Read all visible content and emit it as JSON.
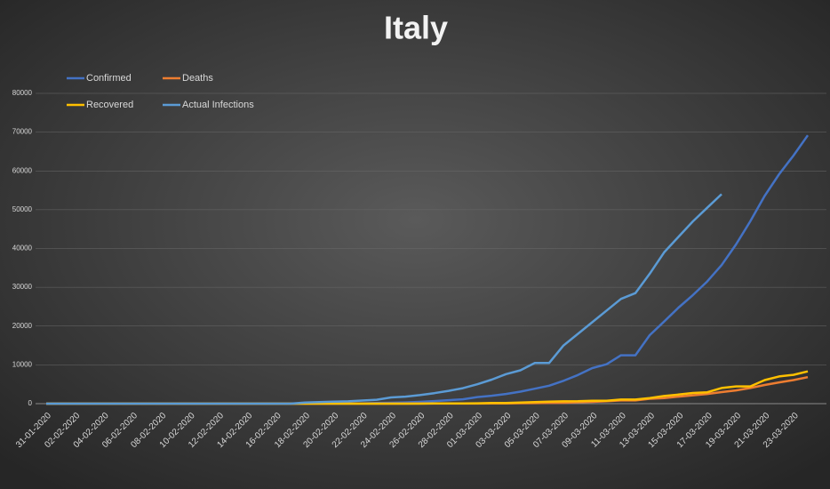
{
  "chart_data": {
    "type": "line",
    "title": "Italy",
    "categories": [
      "31-01-2020",
      null,
      "02-02-2020",
      null,
      "04-02-2020",
      null,
      "06-02-2020",
      null,
      "08-02-2020",
      null,
      "10-02-2020",
      null,
      "12-02-2020",
      null,
      "14-02-2020",
      null,
      "16-02-2020",
      null,
      "18-02-2020",
      null,
      "20-02-2020",
      null,
      "22-02-2020",
      null,
      "24-02-2020",
      null,
      "26-02-2020",
      null,
      "28-02-2020",
      null,
      "01-03-2020",
      null,
      "03-03-2020",
      null,
      "05-03-2020",
      null,
      "07-03-2020",
      null,
      "09-03-2020",
      null,
      "11-03-2020",
      null,
      "13-03-2020",
      null,
      "15-03-2020",
      null,
      "17-03-2020",
      null,
      "19-03-2020",
      null,
      "21-03-2020",
      null,
      "23-03-2020",
      null
    ],
    "series": [
      {
        "name": "Confirmed",
        "color": "#4472c4",
        "values": [
          2,
          2,
          2,
          2,
          2,
          2,
          3,
          3,
          3,
          3,
          3,
          3,
          3,
          3,
          3,
          3,
          3,
          3,
          3,
          3,
          3,
          20,
          79,
          150,
          229,
          322,
          453,
          655,
          888,
          1128,
          1694,
          2036,
          2502,
          3089,
          3858,
          4636,
          5883,
          7375,
          9172,
          10149,
          12462,
          12462,
          17660,
          21157,
          24747,
          27980,
          31506,
          35713,
          41035,
          47021,
          53578,
          59138,
          63927,
          69176
        ]
      },
      {
        "name": "Deaths",
        "color": "#ed7d31",
        "values": [
          0,
          0,
          0,
          0,
          0,
          0,
          0,
          0,
          0,
          0,
          0,
          0,
          0,
          0,
          0,
          0,
          0,
          0,
          0,
          0,
          0,
          1,
          2,
          3,
          7,
          10,
          12,
          17,
          21,
          29,
          34,
          52,
          79,
          107,
          148,
          197,
          233,
          366,
          463,
          631,
          827,
          827,
          1266,
          1441,
          1809,
          2158,
          2503,
          2978,
          3405,
          4032,
          4825,
          5476,
          6077,
          6820
        ]
      },
      {
        "name": "Recovered",
        "color": "#ffc000",
        "values": [
          0,
          0,
          0,
          0,
          0,
          0,
          0,
          0,
          0,
          0,
          0,
          0,
          0,
          0,
          0,
          0,
          0,
          0,
          0,
          0,
          0,
          0,
          1,
          2,
          1,
          1,
          3,
          45,
          46,
          46,
          83,
          149,
          160,
          276,
          414,
          523,
          589,
          622,
          724,
          724,
          1045,
          1045,
          1439,
          1966,
          2335,
          2749,
          2941,
          4025,
          4440,
          4440,
          6072,
          7024,
          7432,
          8326
        ]
      },
      {
        "name": "Actual Infections",
        "color": "#5b9bd5",
        "values": [
          0,
          0,
          0,
          0,
          0,
          0,
          0,
          0,
          0,
          0,
          0,
          0,
          0,
          0,
          0,
          0,
          0,
          0,
          300,
          400,
          500,
          600,
          800,
          1000,
          1600,
          1800,
          2200,
          2700,
          3300,
          4000,
          5000,
          6200,
          7600,
          8600,
          10500,
          10500,
          15000,
          18000,
          21000,
          24000,
          27000,
          28500,
          33500,
          39000,
          43000,
          47000,
          50500,
          54000,
          null,
          null,
          null,
          null,
          null,
          null
        ]
      }
    ],
    "ylim": [
      0,
      80000
    ],
    "yticks": [
      0,
      10000,
      20000,
      30000,
      40000,
      50000,
      60000,
      70000,
      80000
    ],
    "grid": true,
    "legend": "top-left"
  }
}
